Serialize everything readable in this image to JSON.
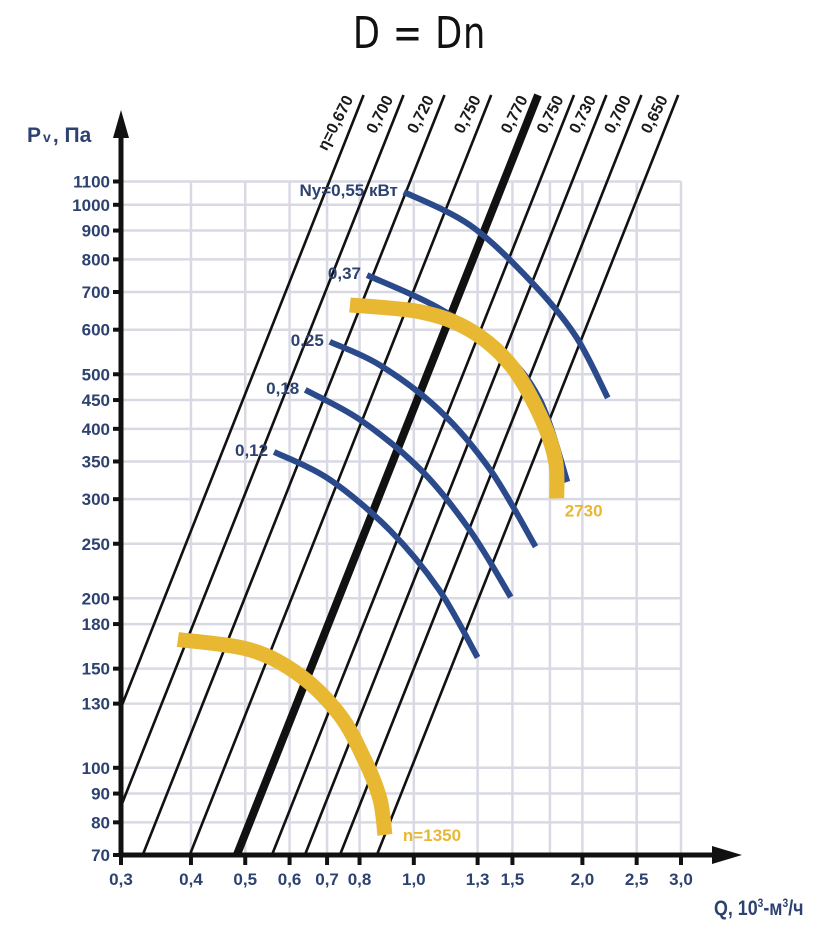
{
  "chart_data": {
    "type": "line",
    "title": "D = Dn",
    "xlabel": "Q, 10³-м³/ч",
    "xlabel_parts": {
      "main": "Q, 10",
      "sup": "3",
      "rest": "-м",
      "sup2": "3",
      "tail": "/ч"
    },
    "ylabel_parts": {
      "p": "P",
      "sub": "v",
      "rest": ", Па"
    },
    "x_scale": "log",
    "y_scale": "log",
    "xlim": [
      0.3,
      3.0
    ],
    "ylim": [
      70,
      1100
    ],
    "x_ticks": [
      0.3,
      0.4,
      0.5,
      0.6,
      0.7,
      0.8,
      1.0,
      1.3,
      1.5,
      2.0,
      2.5,
      3.0
    ],
    "x_tick_labels": [
      "0,3",
      "0,4",
      "0,5",
      "0,6",
      "0,7",
      "0,8",
      "1,0",
      "1,3",
      "1,5",
      "2,0",
      "2,5",
      "3,0"
    ],
    "y_ticks": [
      70,
      80,
      90,
      100,
      130,
      150,
      180,
      200,
      250,
      300,
      350,
      400,
      450,
      500,
      600,
      700,
      800,
      900,
      1000,
      1100
    ],
    "y_tick_labels": [
      "70",
      "80",
      "90",
      "100",
      "130",
      "150",
      "180",
      "200",
      "250",
      "300",
      "350",
      "400",
      "450",
      "500",
      "600",
      "700",
      "800",
      "900",
      "1000",
      "1100"
    ],
    "grid": true,
    "efficiency_lines": [
      {
        "label": "η=0,670",
        "q_at_70": 0.236,
        "q_at_1100": 0.976,
        "bold": false
      },
      {
        "label": "0,700",
        "q_at_70": 0.277,
        "q_at_1100": 1.151,
        "bold": false
      },
      {
        "label": "0,720",
        "q_at_70": 0.328,
        "q_at_1100": 1.362,
        "bold": false
      },
      {
        "label": "0,750",
        "q_at_70": 0.398,
        "q_at_1100": 1.65,
        "bold": false
      },
      {
        "label": "0,770",
        "q_at_70": 0.483,
        "q_at_1100": 2.0,
        "bold": true
      },
      {
        "label": "0,750",
        "q_at_70": 0.558,
        "q_at_1100": 2.32,
        "bold": false
      },
      {
        "label": "0,730",
        "q_at_70": 0.639,
        "q_at_1100": 2.65,
        "bold": false
      },
      {
        "label": "0,700",
        "q_at_70": 0.738,
        "q_at_1100": 3.06,
        "bold": false
      },
      {
        "label": "0,650",
        "q_at_70": 0.859,
        "q_at_1100": 3.56,
        "bold": false
      }
    ],
    "power_curves": [
      {
        "label": "Ny=0,55 кВт",
        "points": [
          [
            0.96,
            1054
          ],
          [
            1.26,
            920
          ],
          [
            1.61,
            735
          ],
          [
            1.94,
            587
          ],
          [
            2.22,
            454
          ]
        ]
      },
      {
        "label": "0,37",
        "points": [
          [
            0.825,
            750
          ],
          [
            1.1,
            658
          ],
          [
            1.43,
            552
          ],
          [
            1.68,
            450
          ],
          [
            1.88,
            322
          ]
        ]
      },
      {
        "label": "0,25",
        "points": [
          [
            0.708,
            571
          ],
          [
            0.87,
            519
          ],
          [
            1.11,
            432
          ],
          [
            1.37,
            338
          ],
          [
            1.65,
            247
          ]
        ]
      },
      {
        "label": "0,18",
        "points": [
          [
            0.64,
            469
          ],
          [
            0.802,
            415
          ],
          [
            1.03,
            338
          ],
          [
            1.26,
            264
          ],
          [
            1.49,
            201
          ]
        ]
      },
      {
        "label": "0,12",
        "points": [
          [
            0.563,
            364
          ],
          [
            0.708,
            325
          ],
          [
            0.907,
            264
          ],
          [
            1.11,
            207
          ],
          [
            1.3,
            157
          ]
        ]
      }
    ],
    "speed_curves": [
      {
        "label": "2730",
        "points": [
          [
            0.769,
            664
          ],
          [
            1.03,
            645
          ],
          [
            1.26,
            599
          ],
          [
            1.49,
            519
          ],
          [
            1.68,
            423
          ],
          [
            1.79,
            352
          ],
          [
            1.8,
            301
          ]
        ]
      },
      {
        "label": "n=1350",
        "points": [
          [
            0.379,
            169
          ],
          [
            0.51,
            162
          ],
          [
            0.626,
            146
          ],
          [
            0.738,
            124
          ],
          [
            0.818,
            103
          ],
          [
            0.87,
            88
          ],
          [
            0.888,
            76
          ]
        ]
      }
    ],
    "colors": {
      "power": "#2b4a8c",
      "speed": "#e8b832",
      "text": "#2d4270",
      "grid": "#d9d9e3",
      "axis": "#111111"
    }
  }
}
